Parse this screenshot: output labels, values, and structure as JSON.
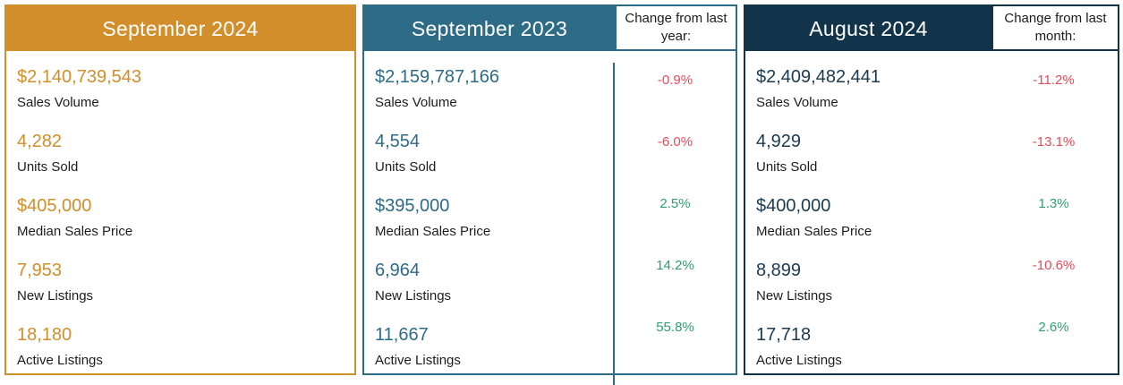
{
  "colors": {
    "gold": "#d28e2a",
    "teal": "#2e6b87",
    "navy": "#12344a",
    "positive": "#2f9e6e",
    "negative": "#e84b5a"
  },
  "panels": [
    {
      "title": "September 2024",
      "accent": "#d28e2a",
      "change_header": null,
      "metrics": [
        {
          "value": "$2,140,739,543",
          "label": "Sales Volume"
        },
        {
          "value": "4,282",
          "label": "Units Sold"
        },
        {
          "value": "$405,000",
          "label": "Median Sales Price"
        },
        {
          "value": "7,953",
          "label": "New Listings"
        },
        {
          "value": "18,180",
          "label": "Active Listings"
        }
      ]
    },
    {
      "title": "September 2023",
      "accent": "#2e6b87",
      "change_header": "Change from last year:",
      "metrics": [
        {
          "value": "$2,159,787,166",
          "label": "Sales Volume",
          "change": "-0.9%"
        },
        {
          "value": "4,554",
          "label": "Units Sold",
          "change": "-6.0%"
        },
        {
          "value": "$395,000",
          "label": "Median Sales Price",
          "change": "2.5%"
        },
        {
          "value": "6,964",
          "label": "New Listings",
          "change": "14.2%"
        },
        {
          "value": "11,667",
          "label": "Active Listings",
          "change": "55.8%"
        }
      ]
    },
    {
      "title": "August 2024",
      "accent": "#12344a",
      "change_header": "Change from last month:",
      "metrics": [
        {
          "value": "$2,409,482,441",
          "label": "Sales Volume",
          "change": "-11.2%"
        },
        {
          "value": "4,929",
          "label": "Units Sold",
          "change": "-13.1%"
        },
        {
          "value": "$400,000",
          "label": "Median Sales Price",
          "change": "1.3%"
        },
        {
          "value": "8,899",
          "label": "New Listings",
          "change": "-10.6%"
        },
        {
          "value": "17,718",
          "label": "Active Listings",
          "change": "2.6%"
        }
      ]
    }
  ]
}
